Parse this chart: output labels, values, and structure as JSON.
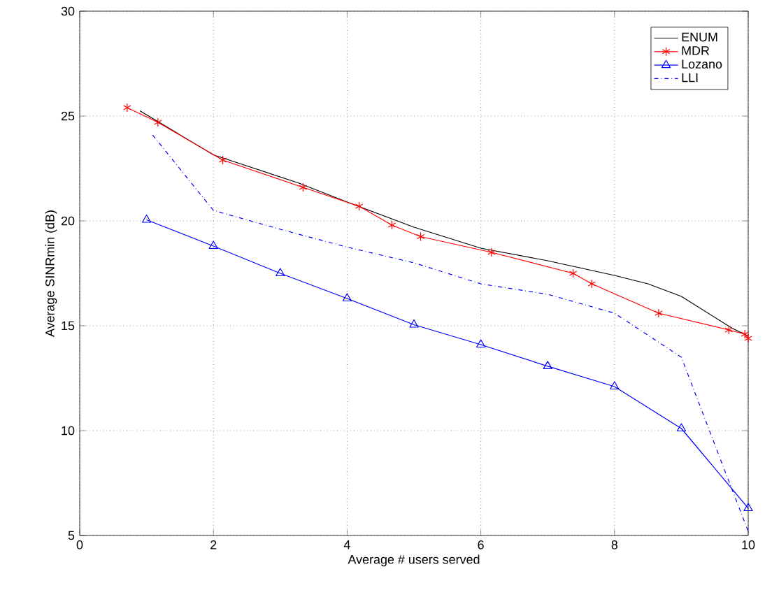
{
  "chart_data": {
    "type": "line",
    "xlabel": "Average # users served",
    "ylabel": "Average SINRmin (dB)",
    "xlim": [
      0,
      10
    ],
    "ylim": [
      5,
      30
    ],
    "xticks": [
      0,
      2,
      4,
      6,
      8,
      10
    ],
    "yticks": [
      5,
      10,
      15,
      20,
      25,
      30
    ],
    "grid": true,
    "legend": "top right",
    "series": [
      {
        "name": "ENUM",
        "color": "#000000",
        "marker": "none",
        "line_style": "solid",
        "x": [
          0.9,
          2,
          3.28,
          4,
          5,
          6,
          7,
          8,
          8.5,
          9,
          9.75,
          10
        ],
        "values": [
          25.25,
          23.15,
          21.8,
          20.9,
          19.7,
          18.7,
          18.1,
          17.4,
          17.0,
          16.4,
          14.9,
          14.5
        ]
      },
      {
        "name": "MDR",
        "color": "#ff0000",
        "marker": "cross",
        "line_style": "solid",
        "x": [
          0.71,
          1.17,
          2.14,
          3.34,
          4.18,
          4.67,
          5.1,
          6.16,
          7.38,
          7.66,
          8.66,
          9.71,
          9.95,
          10
        ],
        "values": [
          25.4,
          24.7,
          22.9,
          21.6,
          20.7,
          19.8,
          19.25,
          18.5,
          17.5,
          17.0,
          15.6,
          14.8,
          14.6,
          14.4
        ]
      },
      {
        "name": "Lozano",
        "color": "#0000ff",
        "marker": "triangle",
        "line_style": "solid",
        "x": [
          1,
          2,
          3,
          4,
          5,
          6,
          7,
          8,
          9,
          10
        ],
        "values": [
          20.05,
          18.8,
          17.5,
          16.3,
          15.05,
          14.1,
          13.07,
          12.1,
          10.1,
          6.3
        ]
      },
      {
        "name": "LLI",
        "color": "#0000ff",
        "marker": "none",
        "line_style": "dashdot",
        "x": [
          1.09,
          2,
          3,
          4,
          5,
          6,
          7,
          8,
          9,
          9.6,
          10
        ],
        "values": [
          24.1,
          20.5,
          19.6,
          18.75,
          18.0,
          17.0,
          16.5,
          15.6,
          13.5,
          8.5,
          5.2
        ]
      }
    ]
  }
}
